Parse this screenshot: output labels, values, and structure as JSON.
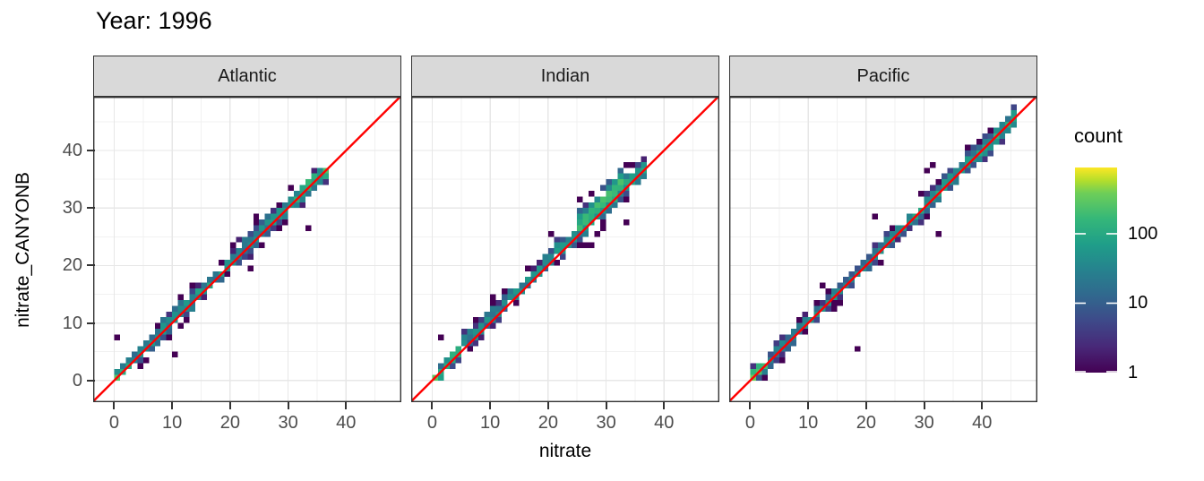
{
  "chart_data": {
    "type": "heatmap",
    "subtype": "bin2d-faceted-scatter-density",
    "title": "Year: 1996",
    "xlabel": "nitrate",
    "ylabel": "nitrate_CANYONB",
    "facets": [
      "Atlantic",
      "Indian",
      "Pacific"
    ],
    "x_ticks": [
      0,
      10,
      20,
      30,
      40
    ],
    "y_ticks": [
      0,
      10,
      20,
      30,
      40
    ],
    "x_minor_ticks": [
      5,
      15,
      25,
      35,
      45
    ],
    "y_minor_ticks": [
      5,
      15,
      25,
      35,
      45
    ],
    "xlim": [
      -3.63,
      49.54
    ],
    "ylim": [
      -3.77,
      49.35
    ],
    "bin_width": 1,
    "grid": "on",
    "identity_line": {
      "slope": 1,
      "intercept": 0,
      "color": "#ff0000",
      "width": 2.4
    },
    "legend": {
      "position": "right",
      "title": "count",
      "tick_labels": [
        "100",
        "10",
        "1"
      ],
      "tick_values": [
        100,
        10,
        1
      ],
      "min_count": 1,
      "max_count": 900,
      "scale": "log10"
    },
    "colors": {
      "viridis_stops": [
        "#440154",
        "#482878",
        "#3e4989",
        "#31688e",
        "#26828e",
        "#1f9e89",
        "#35b779",
        "#6ece58",
        "#b5de2b",
        "#fde725"
      ],
      "stop_positions": [
        0,
        0.125,
        0.25,
        0.375,
        0.5,
        0.625,
        0.75,
        0.875,
        0.9375,
        1
      ],
      "grid_major": "#e7e7e7",
      "grid_minor": "#f1f1f1",
      "panel_border": "#333333",
      "strip_fill": "#d9d9d9",
      "tick_label": "#4d4d4d"
    },
    "panels": [
      {
        "name": "Atlantic",
        "seed": 11,
        "data_range": [
          0,
          36.5
        ],
        "band_segments": [
          {
            "x0": 0,
            "x1": 3,
            "offset": 0.3,
            "spread": 0.9,
            "peak_count": 150
          },
          {
            "x0": 3,
            "x1": 8,
            "offset": 0.4,
            "spread": 1.2,
            "peak_count": 55
          },
          {
            "x0": 8,
            "x1": 14,
            "offset": 0.5,
            "spread": 1.5,
            "peak_count": 75
          },
          {
            "x0": 14,
            "x1": 21,
            "offset": 0.3,
            "spread": 1.0,
            "peak_count": 85
          },
          {
            "x0": 21,
            "x1": 27,
            "offset": 0.4,
            "spread": 1.5,
            "peak_count": 65
          },
          {
            "x0": 27,
            "x1": 31,
            "offset": 0.2,
            "spread": 1.1,
            "peak_count": 110
          },
          {
            "x0": 31,
            "x1": 36.5,
            "offset": 0.1,
            "spread": 1.2,
            "peak_count": 260
          }
        ],
        "outlier_bins": [
          [
            0.4,
            7.4
          ],
          [
            10.2,
            4.8
          ],
          [
            23.4,
            19.5
          ],
          [
            33,
            26.9
          ],
          [
            24,
            28.8
          ]
        ]
      },
      {
        "name": "Indian",
        "seed": 23,
        "data_range": [
          0,
          36.5
        ],
        "band_segments": [
          {
            "x0": 0,
            "x1": 5,
            "offset": 0.4,
            "spread": 1.2,
            "peak_count": 150
          },
          {
            "x0": 5,
            "x1": 12,
            "offset": 0.9,
            "spread": 1.4,
            "peak_count": 55
          },
          {
            "x0": 12,
            "x1": 20,
            "offset": 0.8,
            "spread": 1.2,
            "peak_count": 70
          },
          {
            "x0": 20,
            "x1": 25,
            "offset": 0.7,
            "spread": 1.4,
            "peak_count": 85
          },
          {
            "x0": 25,
            "x1": 33,
            "offset": 1.3,
            "spread": 2.0,
            "peak_count": 230
          },
          {
            "x0": 33,
            "x1": 36.5,
            "offset": 0.3,
            "spread": 1.4,
            "peak_count": 110
          }
        ],
        "outlier_bins": [
          [
            33.8,
            27.4
          ],
          [
            20.8,
            25.8
          ],
          [
            27.5,
            23.8
          ],
          [
            1.5,
            7.3
          ]
        ]
      },
      {
        "name": "Pacific",
        "seed": 5,
        "data_range": [
          0,
          45.5
        ],
        "band_segments": [
          {
            "x0": 0,
            "x1": 3,
            "offset": 0.2,
            "spread": 1.0,
            "peak_count": 280
          },
          {
            "x0": 3,
            "x1": 12,
            "offset": 0.3,
            "spread": 1.2,
            "peak_count": 55
          },
          {
            "x0": 12,
            "x1": 20,
            "offset": 0.2,
            "spread": 0.9,
            "peak_count": 65
          },
          {
            "x0": 20,
            "x1": 28,
            "offset": 0.3,
            "spread": 1.1,
            "peak_count": 75
          },
          {
            "x0": 28,
            "x1": 34,
            "offset": 0.3,
            "spread": 1.3,
            "peak_count": 95
          },
          {
            "x0": 34,
            "x1": 40,
            "offset": 0.2,
            "spread": 1.3,
            "peak_count": 85
          },
          {
            "x0": 40,
            "x1": 45.5,
            "offset": 0.1,
            "spread": 1.4,
            "peak_count": 130
          }
        ],
        "outlier_bins": [
          [
            18.6,
            5.6
          ],
          [
            30,
            36.4
          ],
          [
            31,
            37.4
          ],
          [
            32.5,
            25.8
          ],
          [
            21.7,
            28
          ],
          [
            12.3,
            16.8
          ]
        ]
      }
    ]
  }
}
